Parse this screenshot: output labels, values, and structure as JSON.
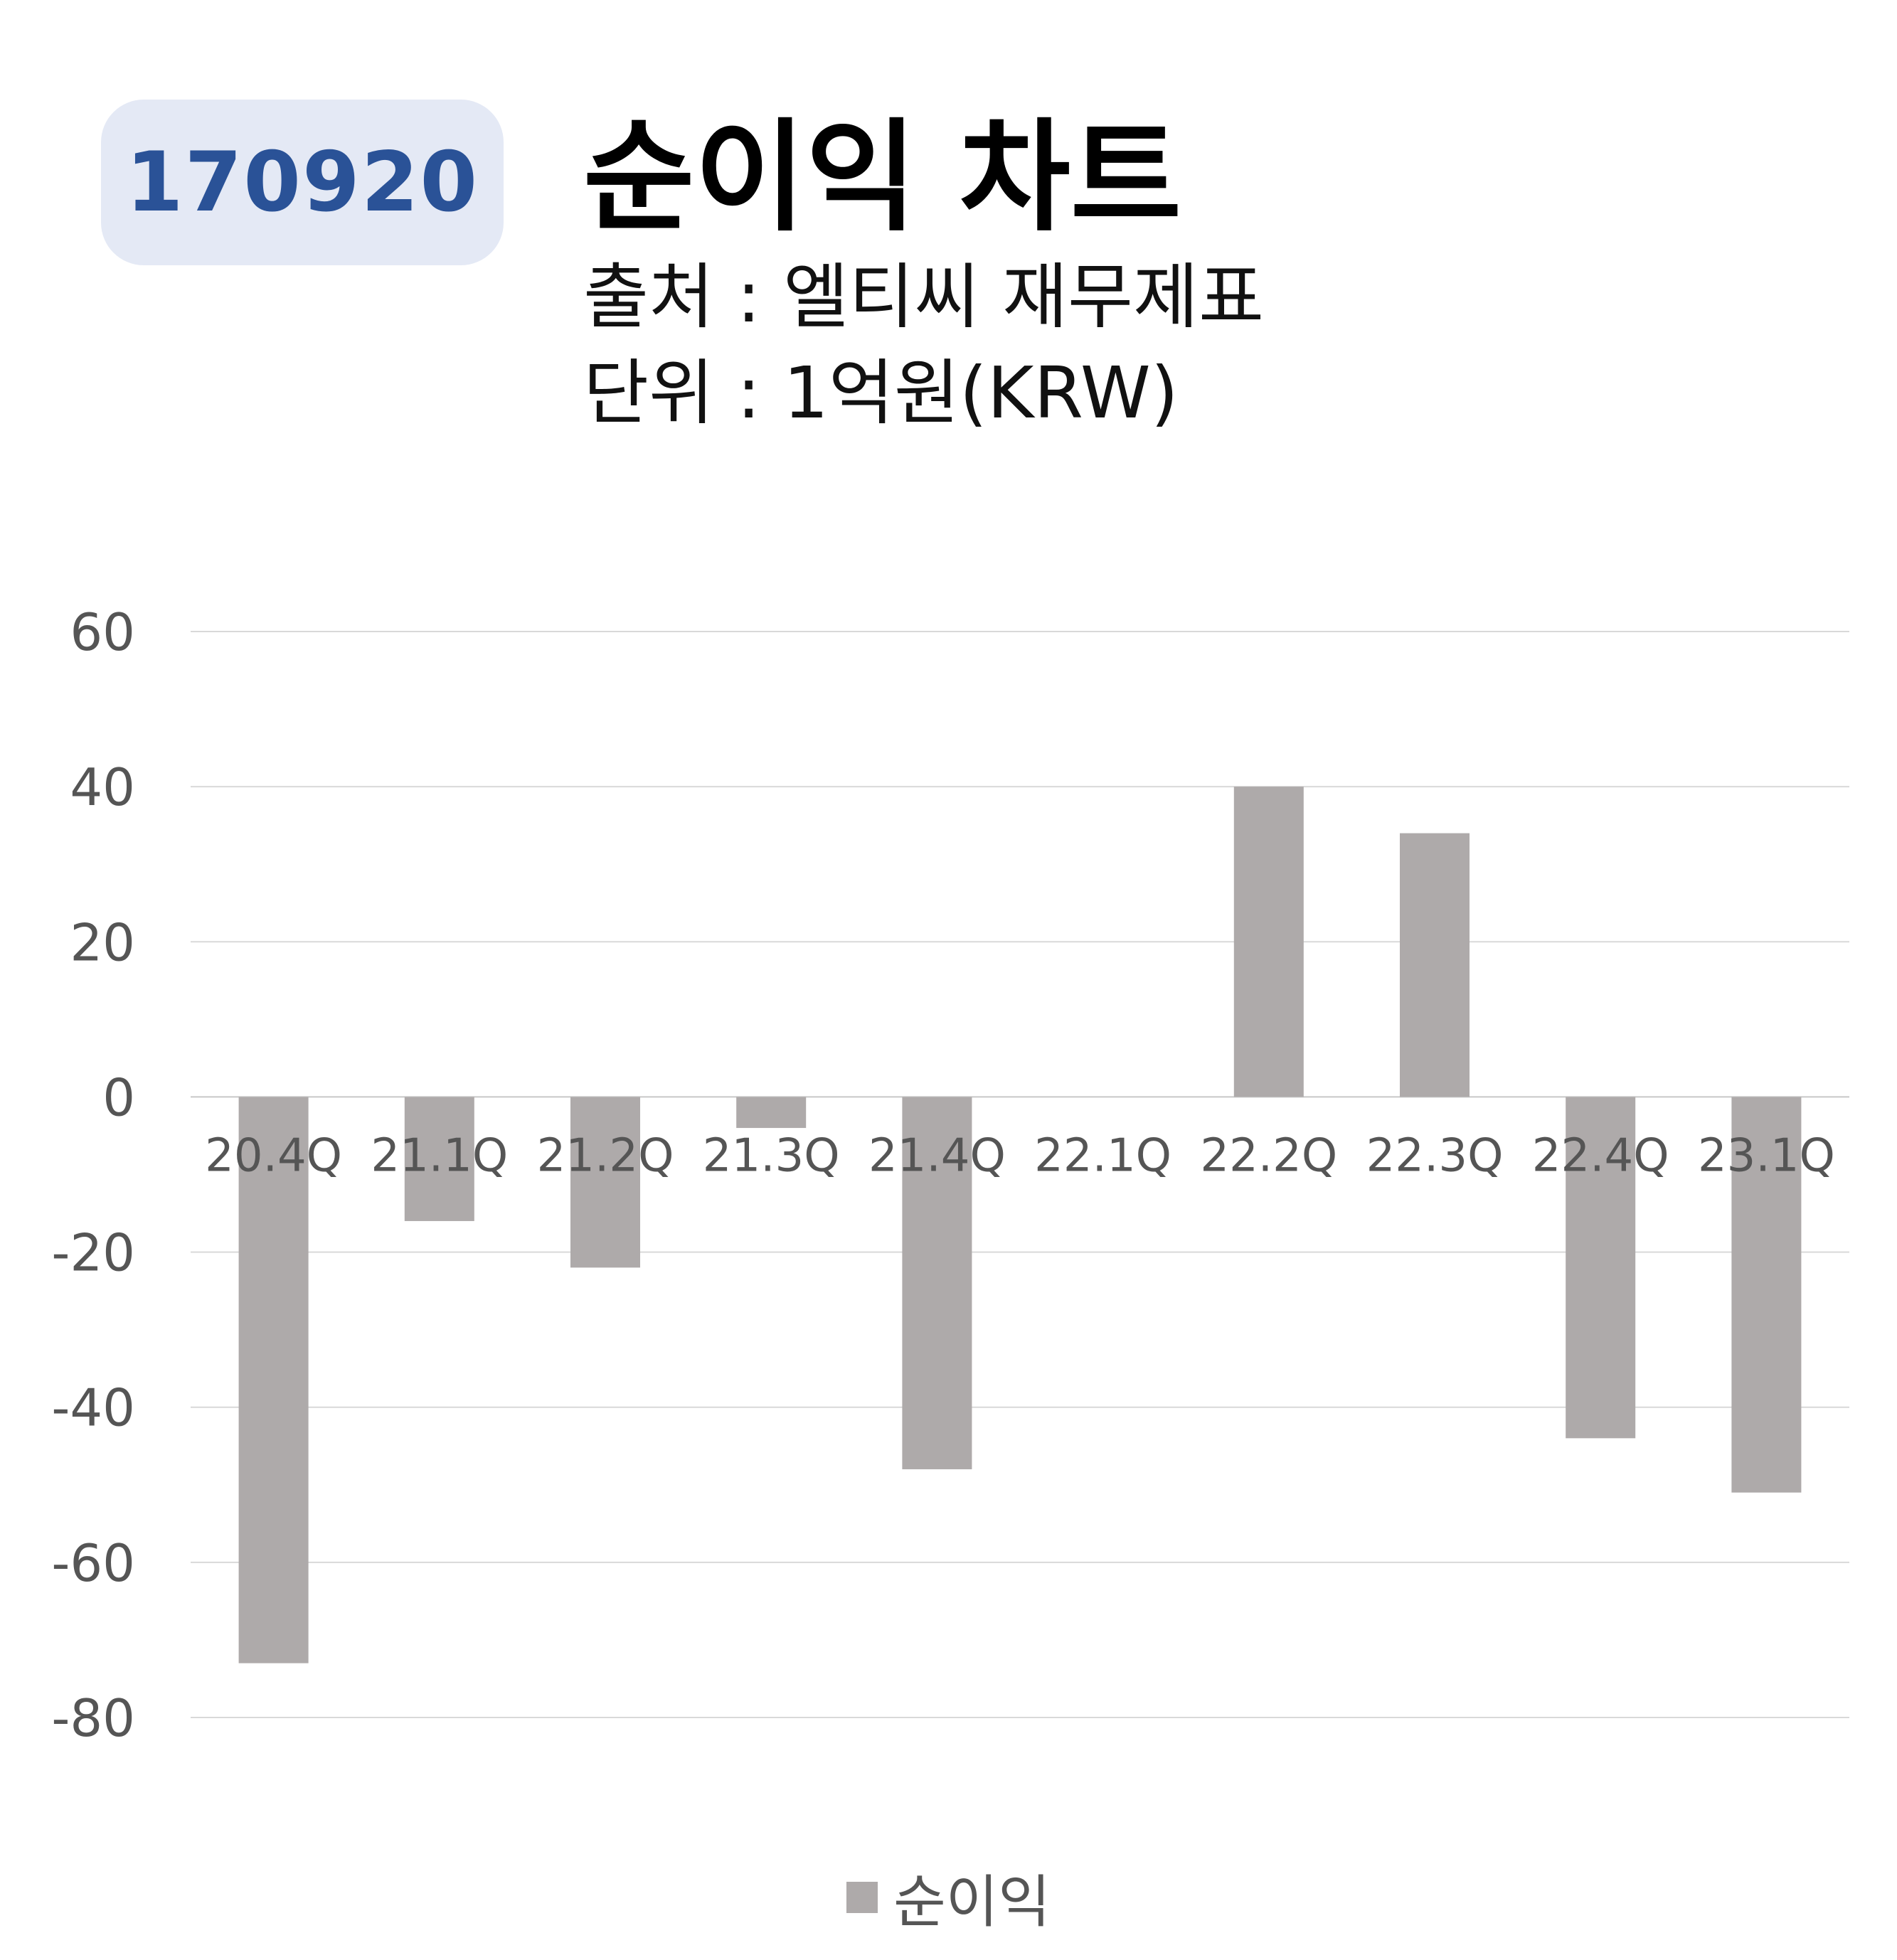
{
  "stock_code": "170920",
  "header": {
    "title": "순이익 차트",
    "source": "출처 : 엘티씨 재무제표",
    "unit": "단위 : 1억원(KRW)"
  },
  "colors": {
    "bar": "#aeaaaa",
    "grid": "#d9d9d9",
    "badge_bg": "#e4e9f5",
    "badge_text": "#2a5297"
  },
  "chart_data": {
    "type": "bar",
    "categories": [
      "20.4Q",
      "21.1Q",
      "21.2Q",
      "21.3Q",
      "21.4Q",
      "22.1Q",
      "22.2Q",
      "22.3Q",
      "22.4Q",
      "23.1Q"
    ],
    "series": [
      {
        "name": "순이익",
        "values": [
          -73,
          -16,
          -22,
          -4,
          -48,
          0,
          40,
          34,
          -44,
          -51
        ]
      }
    ],
    "ylim": [
      -80,
      60
    ],
    "yticks": [
      60,
      40,
      20,
      0,
      -20,
      -40,
      -60,
      -80
    ],
    "grid": true,
    "legend_position": "bottom"
  }
}
